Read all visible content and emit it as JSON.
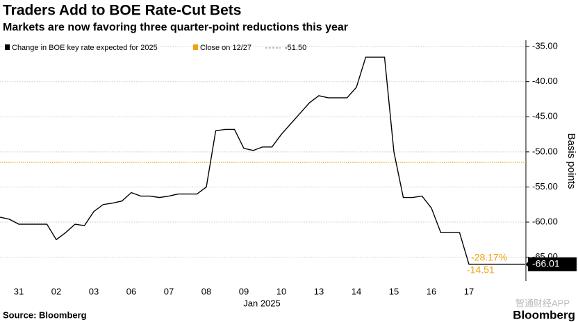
{
  "chart_data": {
    "type": "line",
    "title": "Traders Add to BOE Rate-Cut Bets",
    "subtitle": "Markets are now favoring three quarter-point reductions this year",
    "categories": [
      null,
      null,
      "31",
      null,
      null,
      null,
      "02",
      null,
      null,
      null,
      "03",
      null,
      null,
      null,
      "06",
      null,
      null,
      null,
      "07",
      null,
      null,
      null,
      "08",
      null,
      null,
      null,
      "09",
      null,
      null,
      null,
      "10",
      null,
      null,
      null,
      "13",
      null,
      null,
      null,
      "14",
      null,
      null,
      null,
      "15",
      null,
      null,
      null,
      "16",
      null,
      null,
      null,
      "17",
      null,
      null,
      null,
      null,
      null,
      null
    ],
    "x_group_label": "Jan 2025",
    "series": [
      {
        "name": "Change in BOE key rate expected for 2025",
        "color": "#000000",
        "values": [
          -59.3,
          -59.6,
          -60.3,
          -60.3,
          -60.3,
          -60.3,
          -62.5,
          -61.5,
          -60.3,
          -60.5,
          -58.5,
          -57.5,
          -57.3,
          -57.0,
          -55.8,
          -56.3,
          -56.3,
          -56.5,
          -56.3,
          -56.0,
          -56.0,
          -56.0,
          -55.0,
          -47.0,
          -46.8,
          -46.8,
          -49.5,
          -49.8,
          -49.3,
          -49.3,
          -47.5,
          -46.0,
          -44.5,
          -43.0,
          -42.0,
          -42.3,
          -42.3,
          -42.3,
          -40.8,
          -36.5,
          -36.5,
          -36.5,
          -50.0,
          -56.5,
          -56.5,
          -56.3,
          -58.0,
          -61.5,
          -61.5,
          -61.5,
          -66.01,
          -66.01,
          -66.01,
          -66.01,
          -66.01,
          -66.01,
          -66.01
        ]
      }
    ],
    "reference": {
      "name": "Close on 12/27",
      "value": -51.5,
      "label": "-51.50",
      "color": "#f0a30a"
    },
    "annotations": [
      "-28.17%",
      "-14.51"
    ],
    "ylim": [
      -68.4,
      -34.1
    ],
    "yticks": [
      {
        "value": -35,
        "label": "-35.00"
      },
      {
        "value": -40,
        "label": "-40.00"
      },
      {
        "value": -45,
        "label": "-45.00"
      },
      {
        "value": -50,
        "label": "-50.00"
      },
      {
        "value": -55,
        "label": "-55.00"
      },
      {
        "value": -60,
        "label": "-60.00"
      },
      {
        "value": -65,
        "label": "-65.00"
      }
    ],
    "ylabel": "Basis points",
    "grid": true,
    "source": "Source: Bloomberg",
    "brand": "Bloomberg",
    "watermark": "智通财经APP"
  }
}
